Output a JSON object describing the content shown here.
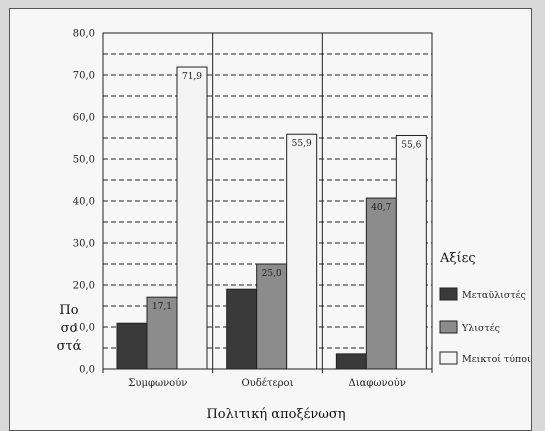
{
  "chart_data": {
    "type": "bar",
    "categories": [
      "Συμφωνούν",
      "Ουδέτεροι",
      "Διαφωνούν"
    ],
    "series": [
      {
        "name": "Μεταϋλιστές",
        "values": [
          10.9,
          19.0,
          3.6
        ],
        "labels": [
          "",
          "",
          ""
        ],
        "color": "#3a3a3a"
      },
      {
        "name": "Υλιστές",
        "values": [
          17.1,
          25.0,
          40.7
        ],
        "labels": [
          "17,1",
          "25,0",
          "40,7"
        ],
        "color": "#8c8c8c"
      },
      {
        "name": "Μεικτοί τύποι",
        "values": [
          71.9,
          55.9,
          55.6
        ],
        "labels": [
          "71,9",
          "55,9",
          "55,6"
        ],
        "color": "#f4f4f4"
      }
    ],
    "ylim": [
      0,
      80
    ],
    "yticks": [
      "0,0",
      "10,0",
      "20,0",
      "30,0",
      "40,0",
      "50,0",
      "60,0",
      "70,0",
      "80,0"
    ],
    "xlabel": "Πολιτική αποξένωση",
    "ylabel": [
      "Πο",
      "σο",
      "στά"
    ],
    "legend_title": "Αξίες",
    "legend_position": "right",
    "grid": "dashed"
  }
}
